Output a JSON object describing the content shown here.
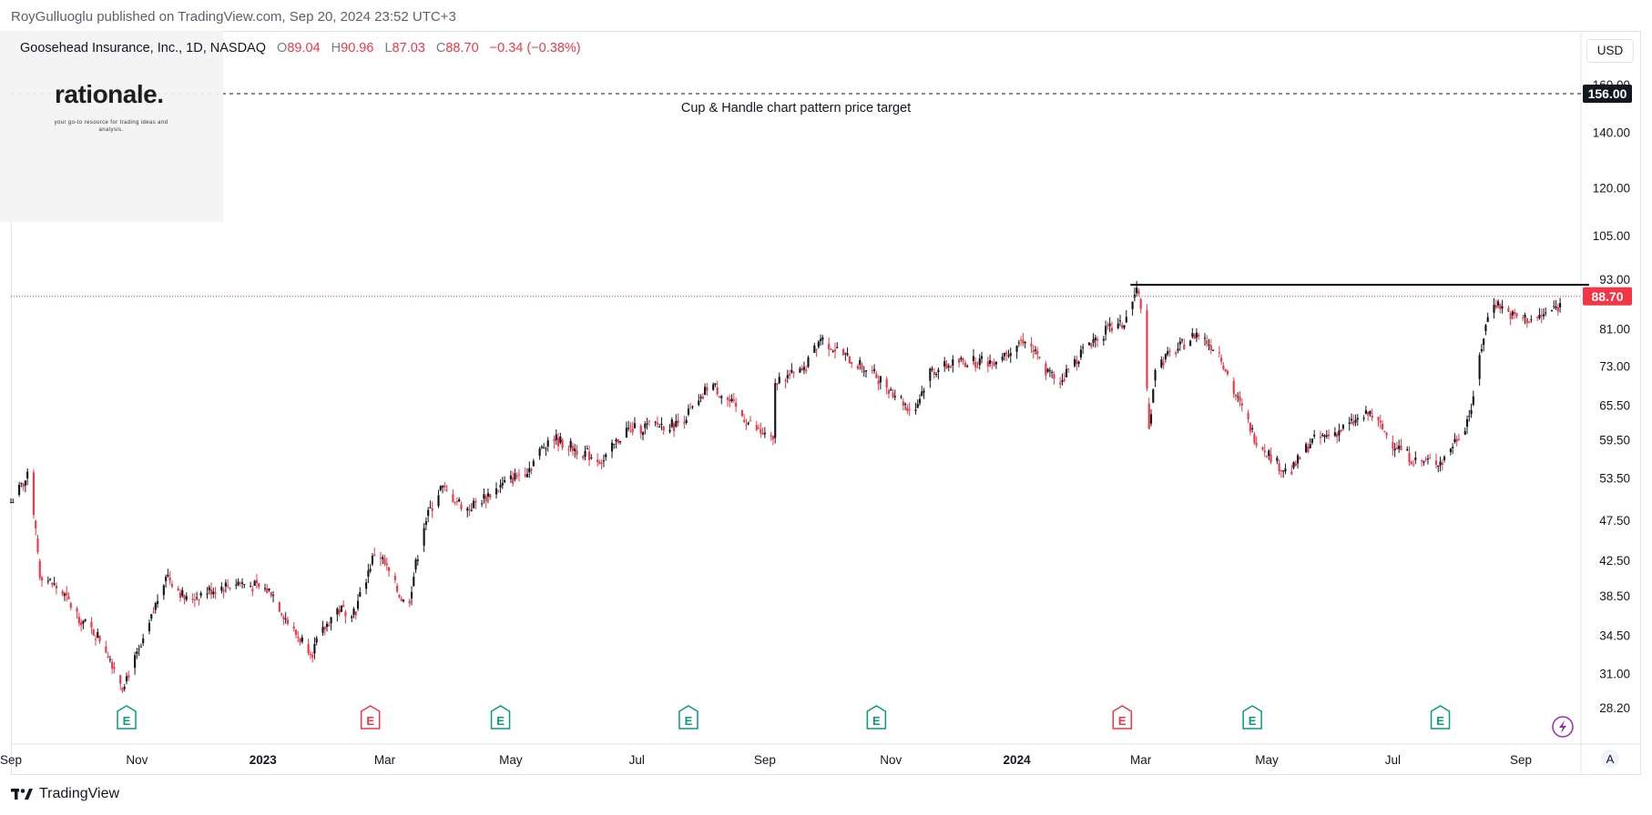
{
  "header": {
    "published_by": "RoyGulluoglu published on TradingView.com, Sep 20, 2024 23:52 UTC+3",
    "symbol_line": "Goosehead Insurance, Inc., 1D, NASDAQ",
    "ohlc": {
      "o_label": "O",
      "o": "89.04",
      "h_label": "H",
      "h": "90.96",
      "l_label": "L",
      "l": "87.03",
      "c_label": "C",
      "c": "88.70",
      "change": "−0.34 (−0.38%)"
    }
  },
  "logo": {
    "name": "rationale.",
    "tagline": "your go-to resource for trading ideas and analysis."
  },
  "currency_button": "USD",
  "footer": {
    "brand": "TradingView"
  },
  "colors": {
    "up": "#131722",
    "down": "#f23645",
    "price_line": "#f23645",
    "resistance": "#000000",
    "earnings_green": "#089981",
    "earnings_red": "#f23645"
  },
  "chart_data": {
    "type": "candlestick",
    "scale": "log",
    "ylim": [
      28.2,
      165
    ],
    "y_ticks": [
      "160.00",
      "140.00",
      "120.00",
      "105.00",
      "93.00",
      "81.00",
      "73.00",
      "65.50",
      "59.50",
      "53.50",
      "47.50",
      "42.50",
      "38.50",
      "34.50",
      "31.00",
      "28.20"
    ],
    "x_ticks": [
      {
        "label": "Sep",
        "bold": false
      },
      {
        "label": "Nov",
        "bold": false
      },
      {
        "label": "2023",
        "bold": true
      },
      {
        "label": "Mar",
        "bold": false
      },
      {
        "label": "May",
        "bold": false
      },
      {
        "label": "Jul",
        "bold": false
      },
      {
        "label": "Sep",
        "bold": false
      },
      {
        "label": "Nov",
        "bold": false
      },
      {
        "label": "2024",
        "bold": true
      },
      {
        "label": "Mar",
        "bold": false
      },
      {
        "label": "May",
        "bold": false
      },
      {
        "label": "Jul",
        "bold": false
      },
      {
        "label": "Sep",
        "bold": false
      }
    ],
    "price_path": [
      [
        "2022-09-01",
        50
      ],
      [
        "2022-09-10",
        54
      ],
      [
        "2022-09-15",
        41
      ],
      [
        "2022-09-25",
        39
      ],
      [
        "2022-10-05",
        36
      ],
      [
        "2022-10-15",
        34
      ],
      [
        "2022-10-25",
        30
      ],
      [
        "2022-11-05",
        34
      ],
      [
        "2022-11-15",
        41
      ],
      [
        "2022-11-25",
        38
      ],
      [
        "2022-12-05",
        39
      ],
      [
        "2022-12-20",
        40
      ],
      [
        "2023-01-05",
        39
      ],
      [
        "2023-01-15",
        35
      ],
      [
        "2023-01-25",
        33
      ],
      [
        "2023-02-05",
        37
      ],
      [
        "2023-02-15",
        37
      ],
      [
        "2023-02-25",
        44
      ],
      [
        "2023-03-05",
        40
      ],
      [
        "2023-03-12",
        37
      ],
      [
        "2023-03-20",
        47
      ],
      [
        "2023-03-28",
        52
      ],
      [
        "2023-04-10",
        49
      ],
      [
        "2023-04-25",
        52
      ],
      [
        "2023-05-10",
        55
      ],
      [
        "2023-05-20",
        60
      ],
      [
        "2023-06-01",
        58
      ],
      [
        "2023-06-15",
        56
      ],
      [
        "2023-06-25",
        61
      ],
      [
        "2023-07-10",
        62
      ],
      [
        "2023-07-20",
        62
      ],
      [
        "2023-08-01",
        66
      ],
      [
        "2023-08-05",
        70
      ],
      [
        "2023-08-15",
        66
      ],
      [
        "2023-08-25",
        62
      ],
      [
        "2023-09-05",
        59
      ],
      [
        "2023-09-06",
        70
      ],
      [
        "2023-09-20",
        72
      ],
      [
        "2023-09-28",
        79
      ],
      [
        "2023-10-10",
        75
      ],
      [
        "2023-10-25",
        71
      ],
      [
        "2023-11-05",
        67
      ],
      [
        "2023-11-12",
        64
      ],
      [
        "2023-11-20",
        72
      ],
      [
        "2023-12-05",
        74
      ],
      [
        "2023-12-20",
        74
      ],
      [
        "2024-01-05",
        79
      ],
      [
        "2024-01-15",
        72
      ],
      [
        "2024-01-22",
        70
      ],
      [
        "2024-02-05",
        78
      ],
      [
        "2024-02-15",
        81
      ],
      [
        "2024-02-22",
        82
      ],
      [
        "2024-02-28",
        90
      ],
      [
        "2024-03-01",
        87
      ],
      [
        "2024-03-05",
        61
      ],
      [
        "2024-03-08",
        73
      ],
      [
        "2024-03-20",
        77
      ],
      [
        "2024-03-28",
        80
      ],
      [
        "2024-04-08",
        76
      ],
      [
        "2024-04-15",
        68
      ],
      [
        "2024-04-25",
        60
      ],
      [
        "2024-05-05",
        56
      ],
      [
        "2024-05-12",
        54
      ],
      [
        "2024-05-22",
        59
      ],
      [
        "2024-06-05",
        61
      ],
      [
        "2024-06-20",
        64
      ],
      [
        "2024-07-01",
        59
      ],
      [
        "2024-07-12",
        56
      ],
      [
        "2024-07-25",
        56
      ],
      [
        "2024-08-05",
        62
      ],
      [
        "2024-08-10",
        67
      ],
      [
        "2024-08-12",
        75
      ],
      [
        "2024-08-18",
        88
      ],
      [
        "2024-08-28",
        84
      ],
      [
        "2024-09-08",
        83
      ],
      [
        "2024-09-18",
        86
      ],
      [
        "2024-09-28",
        88
      ],
      [
        "2024-10-02",
        88.7
      ]
    ],
    "last_close": 88.7,
    "last_close_label": "88.70",
    "resistance_line": {
      "value": 91.6,
      "from": "2024-02-25",
      "to": "2024-10-04"
    },
    "target_line": {
      "value": 156.0,
      "label": "156.00",
      "caption": "Cup & Handle chart pattern price target"
    },
    "earnings": [
      {
        "date": "2022-10-27",
        "kind": "green"
      },
      {
        "date": "2023-02-22",
        "kind": "red"
      },
      {
        "date": "2023-04-26",
        "kind": "green"
      },
      {
        "date": "2023-07-26",
        "kind": "green"
      },
      {
        "date": "2023-10-25",
        "kind": "green"
      },
      {
        "date": "2024-02-21",
        "kind": "red"
      },
      {
        "date": "2024-04-24",
        "kind": "green"
      },
      {
        "date": "2024-07-24",
        "kind": "green"
      }
    ],
    "earnings_letter": "E",
    "future_event_icon": "lightning-icon",
    "auto_scale_button": "A"
  }
}
